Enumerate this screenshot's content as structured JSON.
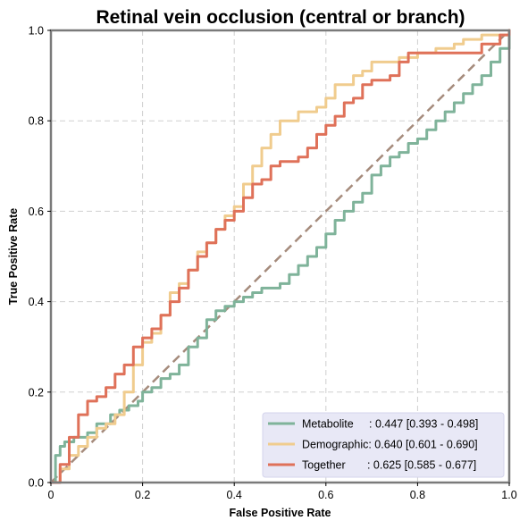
{
  "chart_data": {
    "type": "line",
    "title": "Retinal vein occlusion (central or branch)",
    "xlabel": "False Positive Rate",
    "ylabel": "True Positive Rate",
    "xlim": [
      0,
      1
    ],
    "ylim": [
      0,
      1
    ],
    "xticks": [
      "0",
      "0.2",
      "0.4",
      "0.6",
      "0.8",
      "1.0"
    ],
    "yticks": [
      "0.0",
      "0.2",
      "0.4",
      "0.6",
      "0.8",
      "1.0"
    ],
    "grid": true,
    "legend_position": "lower-right",
    "reference_line": {
      "x": [
        0,
        1
      ],
      "y": [
        0,
        1
      ],
      "color": "#a58b7c",
      "style": "dashed"
    },
    "series": [
      {
        "name": "Metabolite",
        "legend_label": "Metabolite     : 0.447 [0.393 - 0.498]",
        "color": "#7fb39a",
        "x": [
          0,
          0.01,
          0.02,
          0.03,
          0.05,
          0.08,
          0.1,
          0.13,
          0.15,
          0.17,
          0.19,
          0.2,
          0.22,
          0.24,
          0.26,
          0.28,
          0.3,
          0.32,
          0.34,
          0.36,
          0.38,
          0.4,
          0.42,
          0.44,
          0.46,
          0.48,
          0.5,
          0.52,
          0.54,
          0.56,
          0.58,
          0.6,
          0.62,
          0.64,
          0.66,
          0.68,
          0.7,
          0.72,
          0.74,
          0.76,
          0.78,
          0.8,
          0.82,
          0.84,
          0.86,
          0.88,
          0.9,
          0.92,
          0.94,
          0.96,
          0.98,
          1.0
        ],
        "y": [
          0,
          0.06,
          0.08,
          0.09,
          0.1,
          0.11,
          0.13,
          0.15,
          0.16,
          0.17,
          0.18,
          0.2,
          0.21,
          0.23,
          0.24,
          0.26,
          0.3,
          0.32,
          0.36,
          0.38,
          0.39,
          0.4,
          0.41,
          0.42,
          0.43,
          0.43,
          0.44,
          0.46,
          0.48,
          0.5,
          0.52,
          0.55,
          0.58,
          0.6,
          0.62,
          0.64,
          0.68,
          0.7,
          0.72,
          0.73,
          0.75,
          0.76,
          0.78,
          0.8,
          0.82,
          0.84,
          0.86,
          0.88,
          0.9,
          0.93,
          0.96,
          1.0
        ]
      },
      {
        "name": "Demographic",
        "legend_label": "Demographic: 0.640 [0.601 - 0.690]",
        "color": "#f0cc8e",
        "x": [
          0,
          0.02,
          0.04,
          0.06,
          0.08,
          0.1,
          0.12,
          0.14,
          0.16,
          0.18,
          0.2,
          0.22,
          0.24,
          0.26,
          0.28,
          0.3,
          0.32,
          0.34,
          0.36,
          0.38,
          0.4,
          0.42,
          0.44,
          0.46,
          0.48,
          0.5,
          0.52,
          0.54,
          0.56,
          0.58,
          0.6,
          0.62,
          0.64,
          0.66,
          0.68,
          0.7,
          0.72,
          0.74,
          0.76,
          0.8,
          0.84,
          0.88,
          0.9,
          0.94,
          0.98,
          1.0
        ],
        "y": [
          0,
          0.03,
          0.06,
          0.08,
          0.1,
          0.12,
          0.13,
          0.15,
          0.2,
          0.26,
          0.31,
          0.33,
          0.37,
          0.42,
          0.44,
          0.47,
          0.51,
          0.53,
          0.56,
          0.59,
          0.61,
          0.66,
          0.7,
          0.74,
          0.77,
          0.8,
          0.8,
          0.82,
          0.82,
          0.83,
          0.85,
          0.88,
          0.88,
          0.9,
          0.91,
          0.93,
          0.93,
          0.93,
          0.94,
          0.95,
          0.96,
          0.97,
          0.98,
          0.99,
          0.99,
          1.0
        ]
      },
      {
        "name": "Together",
        "legend_label": "Together       : 0.625 [0.585 - 0.677]",
        "color": "#df7159",
        "x": [
          0,
          0.02,
          0.04,
          0.06,
          0.08,
          0.1,
          0.12,
          0.14,
          0.16,
          0.18,
          0.2,
          0.22,
          0.24,
          0.26,
          0.28,
          0.3,
          0.32,
          0.34,
          0.36,
          0.38,
          0.4,
          0.42,
          0.44,
          0.46,
          0.48,
          0.5,
          0.52,
          0.54,
          0.56,
          0.58,
          0.6,
          0.62,
          0.64,
          0.66,
          0.68,
          0.7,
          0.72,
          0.74,
          0.76,
          0.78,
          0.8,
          0.84,
          0.88,
          0.9,
          0.94,
          0.98,
          1.0
        ],
        "y": [
          0,
          0.04,
          0.1,
          0.15,
          0.18,
          0.19,
          0.21,
          0.24,
          0.26,
          0.3,
          0.32,
          0.34,
          0.37,
          0.4,
          0.43,
          0.47,
          0.5,
          0.53,
          0.56,
          0.58,
          0.6,
          0.63,
          0.66,
          0.67,
          0.7,
          0.71,
          0.71,
          0.72,
          0.74,
          0.77,
          0.79,
          0.81,
          0.84,
          0.85,
          0.88,
          0.89,
          0.89,
          0.9,
          0.93,
          0.95,
          0.95,
          0.95,
          0.95,
          0.95,
          0.97,
          0.99,
          1.0
        ]
      }
    ]
  }
}
